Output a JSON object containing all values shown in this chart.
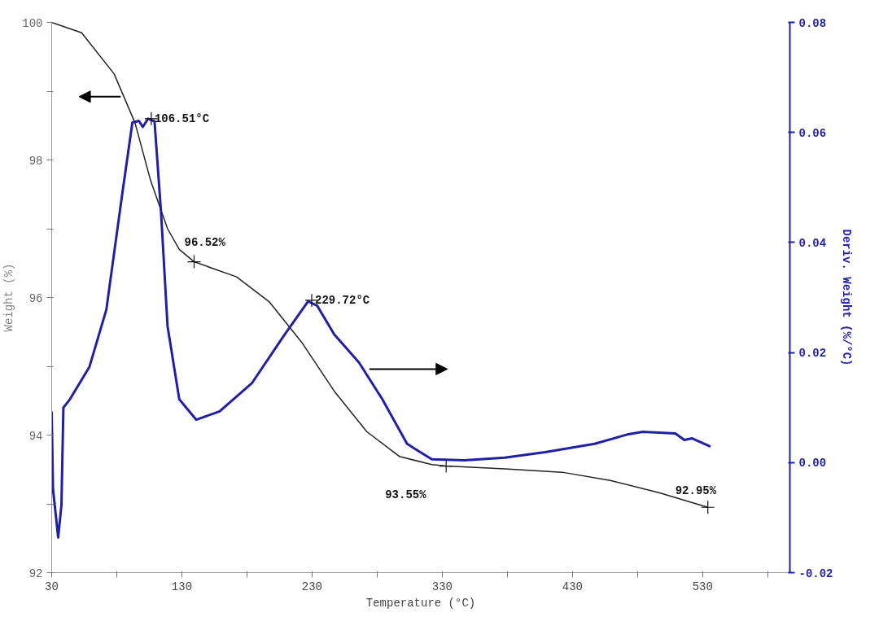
{
  "chart_data": {
    "type": "line",
    "xlabel": "Temperature (°C)",
    "ylabel": "Weight (%)",
    "y2label": "Deriv. Weight (%/°C)",
    "xlim": [
      30,
      597
    ],
    "ylim": [
      92,
      100
    ],
    "y2lim": [
      -0.02,
      0.08
    ],
    "xticks": [
      30,
      {
        "value": 80,
        "label": null
      },
      130,
      {
        "value": 180,
        "label": null
      },
      230,
      {
        "value": 280,
        "label": null
      },
      330,
      {
        "value": 380,
        "label": null
      },
      430,
      {
        "value": 480,
        "label": null
      },
      530,
      {
        "value": 580,
        "label": null
      }
    ],
    "yticks": [
      92,
      {
        "value": 93,
        "label": null
      },
      94,
      {
        "value": 95,
        "label": null
      },
      96,
      {
        "value": 97,
        "label": null
      },
      98,
      {
        "value": 99,
        "label": null
      },
      100
    ],
    "y2ticks": [
      {
        "value": -0.02,
        "label": "-0.02"
      },
      {
        "value": 0,
        "label": "0.00"
      },
      {
        "value": 0.02,
        "label": "0.02"
      },
      {
        "value": 0.04,
        "label": "0.04"
      },
      {
        "value": 0.06,
        "label": "0.06"
      },
      {
        "value": 0.08,
        "label": "0.08"
      }
    ],
    "grid": false,
    "marker": "none",
    "line_style": "solid",
    "series": [
      {
        "color": "#222222",
        "x": [
          30,
          53,
          78,
          94,
          106,
          119,
          128,
          139.4,
          172,
          197,
          222,
          247,
          272,
          297,
          322,
          333,
          378,
          422,
          459,
          497,
          534
        ],
        "values": [
          100,
          99.85,
          99.25,
          98.54,
          97.7,
          97.0,
          96.7,
          96.52,
          96.3,
          95.94,
          95.35,
          94.64,
          94.05,
          93.69,
          93.57,
          93.55,
          93.51,
          93.46,
          93.34,
          93.16,
          92.95
        ]
      },
      {
        "color": "#1f1fa8",
        "axis": "y2",
        "x": [
          30,
          31,
          35,
          37.5,
          39,
          44,
          59,
          72,
          84,
          92,
          97,
          100,
          104,
          109,
          114,
          119,
          128,
          141,
          159,
          184,
          209,
          227,
          234,
          247,
          266,
          284,
          303,
          322,
          347,
          378,
          409,
          447,
          472,
          484,
          509,
          516,
          522,
          536
        ],
        "values": [
          0.0093,
          -0.0048,
          -0.0136,
          -0.0077,
          0.01,
          0.0115,
          0.0174,
          0.0278,
          0.0485,
          0.0618,
          0.0621,
          0.061,
          0.0625,
          0.062,
          0.0455,
          0.0248,
          0.0115,
          0.0078,
          0.0093,
          0.0145,
          0.0233,
          0.0293,
          0.0285,
          0.0233,
          0.0182,
          0.0115,
          0.0034,
          0.0006,
          0.0004,
          0.0009,
          0.0019,
          0.0034,
          0.0051,
          0.0056,
          0.0053,
          0.0041,
          0.0044,
          0.0029
        ]
      }
    ],
    "annotations": [
      {
        "text": "106.51°C",
        "x": 106.51,
        "y": 98.6
      },
      {
        "text": "96.52%",
        "x": 139.4,
        "y": 96.52
      },
      {
        "text": "229.72°C",
        "x": 229.72,
        "y": 95.96
      },
      {
        "text": "93.55%",
        "x": 333,
        "y": 93.55
      },
      {
        "text": "92.95%",
        "x": 534,
        "y": 92.95
      }
    ]
  }
}
